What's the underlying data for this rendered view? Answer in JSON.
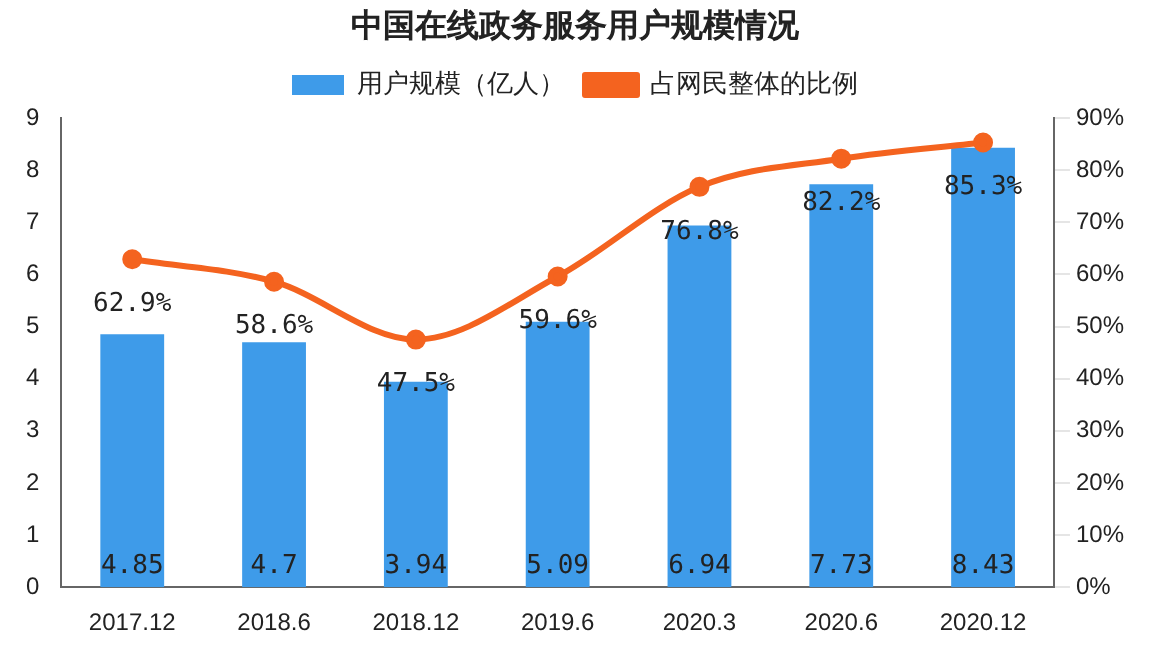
{
  "chart_data": {
    "type": "bar",
    "title": "中国在线政务服务用户规模情况",
    "categories": [
      "2017.12",
      "2018.6",
      "2018.12",
      "2019.6",
      "2020.3",
      "2020.6",
      "2020.12"
    ],
    "series": [
      {
        "name": "用户规模（亿人）",
        "color": "#3e9be9",
        "values": [
          4.85,
          4.7,
          3.94,
          5.09,
          6.94,
          7.73,
          8.43
        ],
        "value_labels": [
          "4.85",
          "4.7",
          "3.94",
          "5.09",
          "6.94",
          "7.73",
          "8.43"
        ]
      },
      {
        "name": "占网民整体的比例",
        "type": "line",
        "axis": "y2",
        "color": "#f4631f",
        "marker": "circle",
        "values": [
          62.9,
          58.6,
          47.5,
          59.6,
          76.8,
          82.2,
          85.3
        ],
        "value_labels": [
          "62.9%",
          "58.6%",
          "47.5%",
          "59.6%",
          "76.8%",
          "82.2%",
          "85.3%"
        ]
      }
    ],
    "ylim": [
      0,
      9
    ],
    "yticks": [
      0,
      1,
      2,
      3,
      4,
      5,
      6,
      7,
      8,
      9
    ],
    "y2lim": [
      0,
      90
    ],
    "y2ticks": [
      {
        "value": 0,
        "label": "0%"
      },
      {
        "value": 10,
        "label": "10%"
      },
      {
        "value": 20,
        "label": "20%"
      },
      {
        "value": 30,
        "label": "30%"
      },
      {
        "value": 40,
        "label": "40%"
      },
      {
        "value": 50,
        "label": "50%"
      },
      {
        "value": 60,
        "label": "60%"
      },
      {
        "value": 70,
        "label": "70%"
      },
      {
        "value": 80,
        "label": "80%"
      },
      {
        "value": 90,
        "label": "90%"
      }
    ],
    "grid": false,
    "legend": "top"
  }
}
